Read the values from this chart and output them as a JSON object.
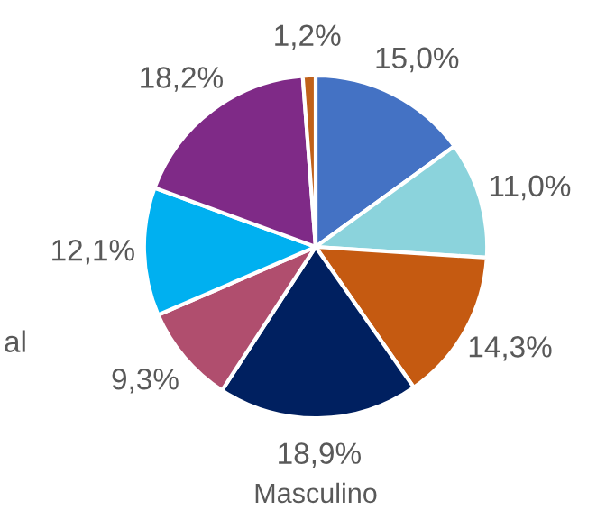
{
  "chart_data": {
    "type": "pie",
    "categories": [
      null,
      null,
      null,
      null,
      null,
      null,
      null,
      null
    ],
    "values": [
      15.0,
      11.0,
      14.3,
      18.9,
      9.3,
      12.1,
      18.2,
      1.2
    ],
    "colors": [
      "#4472c4",
      "#8bd3dc",
      "#c55a11",
      "#002060",
      "#b04e6e",
      "#00b0f0",
      "#7f2a87",
      "#c0611a"
    ],
    "value_labels": [
      "15,0%",
      "11,0%",
      "14,3%",
      "18,9%",
      "9,3%",
      "12,1%",
      "18,2%",
      "1,2%"
    ],
    "xlabel": "Masculino",
    "annotations": [
      "al"
    ],
    "legend": false
  }
}
